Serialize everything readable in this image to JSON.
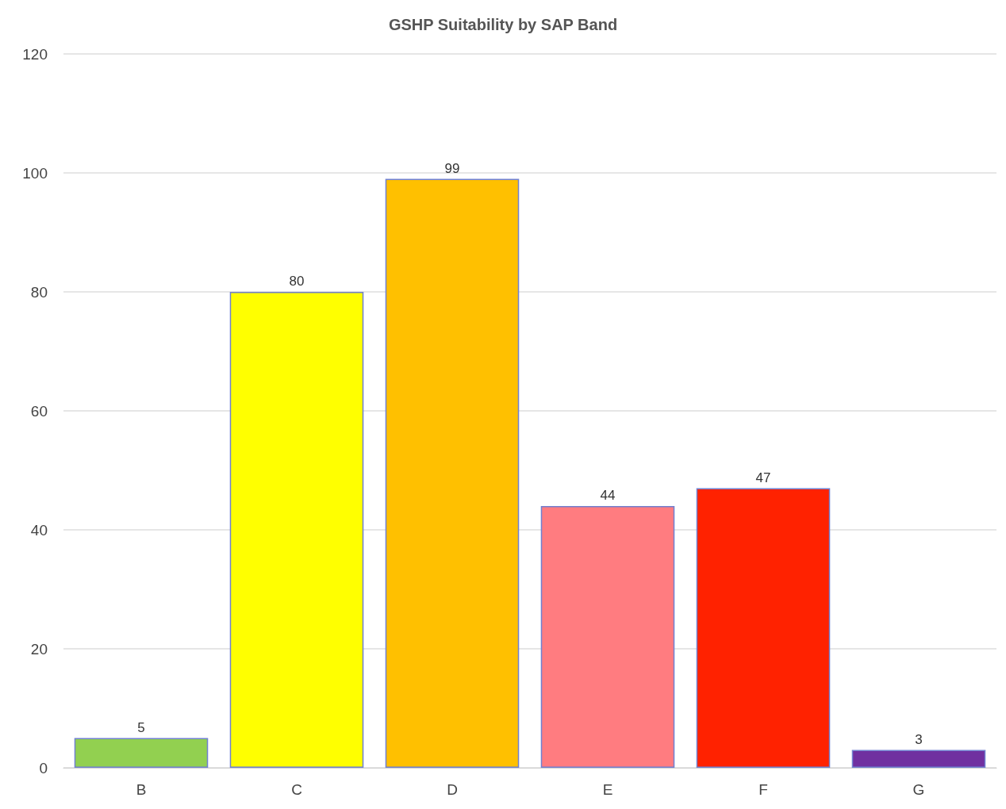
{
  "chart_data": {
    "type": "bar",
    "title": "GSHP Suitability by SAP Band",
    "categories": [
      "B",
      "C",
      "D",
      "E",
      "F",
      "G"
    ],
    "values": [
      5,
      80,
      99,
      44,
      47,
      3
    ],
    "colors": [
      "#92d050",
      "#ffff00",
      "#ffc000",
      "#ff7c80",
      "#ff2200",
      "#7030a0"
    ],
    "ylim": [
      0,
      120
    ],
    "yticks": [
      0,
      20,
      40,
      60,
      80,
      100,
      120
    ],
    "grid": "y",
    "data_labels": true
  }
}
